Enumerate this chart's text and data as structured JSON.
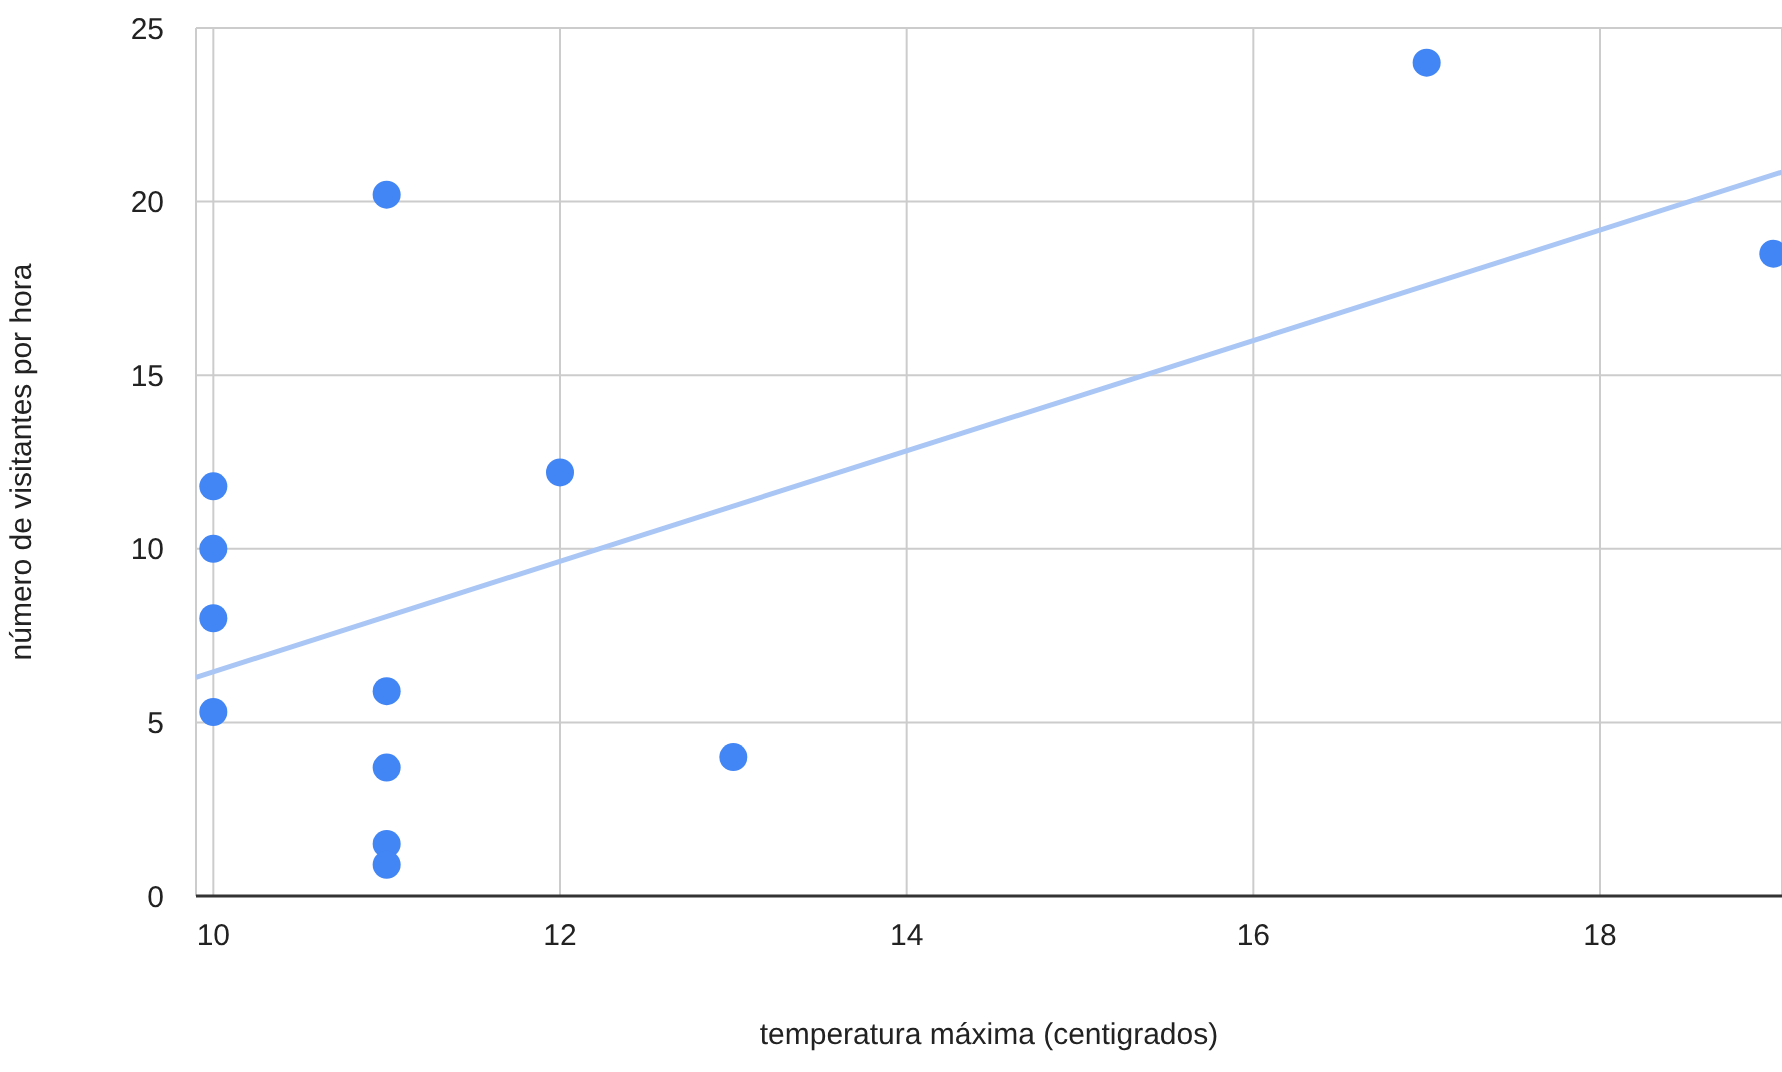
{
  "chart_data": {
    "type": "scatter",
    "xlabel": "temperatura máxima (centigrados)",
    "ylabel": "número de visitantes por hora",
    "xlim": [
      9.9,
      19.05
    ],
    "xticks": [
      10,
      12,
      14,
      16,
      18
    ],
    "ylim": [
      0,
      25
    ],
    "yticks": [
      0,
      5,
      10,
      15,
      20,
      25
    ],
    "grid": true,
    "series": [
      {
        "color": "#4285f4",
        "marker": "circle",
        "x": [
          10,
          10,
          10,
          10,
          11,
          11,
          11,
          11,
          11,
          12,
          13,
          17,
          19
        ],
        "values": [
          11.8,
          10.0,
          8.0,
          5.3,
          20.2,
          5.9,
          3.7,
          1.5,
          0.9,
          12.2,
          4.0,
          24.0,
          18.5
        ]
      },
      {
        "type": "line",
        "color": "#a9c6f5",
        "marker": "none",
        "x": [
          9.9,
          19.05
        ],
        "values": [
          6.3,
          20.85
        ]
      }
    ]
  }
}
